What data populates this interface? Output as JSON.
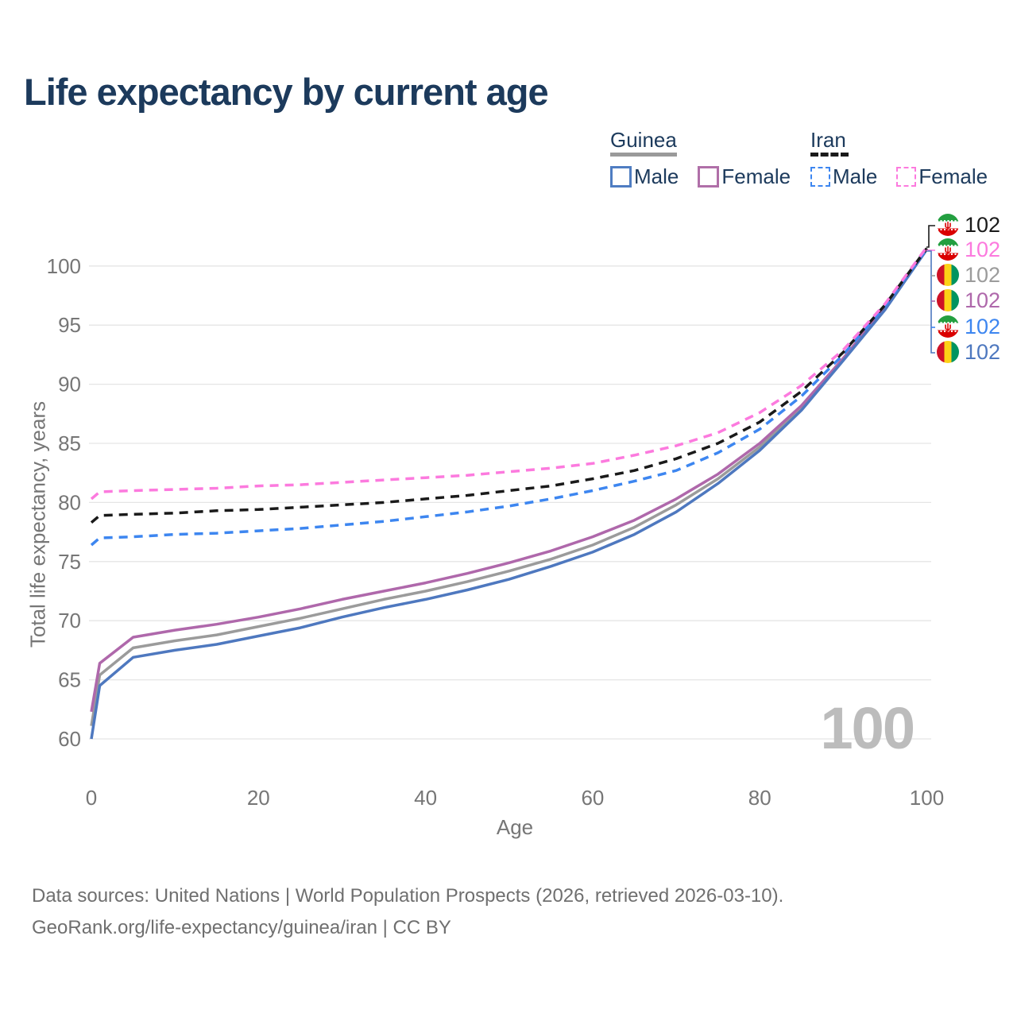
{
  "title": "Life expectancy by current age",
  "legend": {
    "groups": [
      {
        "label": "Guinea",
        "underline": "solid",
        "underline_color": "#9a9a9a",
        "items": [
          {
            "label": "Male",
            "color": "#4f7dc2",
            "dashed": false
          },
          {
            "label": "Female",
            "color": "#b06fa8",
            "dashed": false
          }
        ]
      },
      {
        "label": "Iran",
        "underline": "dashed",
        "underline_color": "#1a1a1a",
        "items": [
          {
            "label": "Male",
            "color": "#3d86f0",
            "dashed": true
          },
          {
            "label": "Female",
            "color": "#fc7ade",
            "dashed": true
          }
        ]
      }
    ]
  },
  "chart_data": {
    "type": "line",
    "title": "Life expectancy by current age",
    "xlabel": "Age",
    "ylabel": "Total life expectancy, years",
    "x_ticks": [
      0,
      20,
      40,
      60,
      80,
      100
    ],
    "y_ticks": [
      60,
      65,
      70,
      75,
      80,
      85,
      90,
      95,
      100
    ],
    "xlim": [
      0,
      100
    ],
    "ylim": [
      60,
      102
    ],
    "grid": "horizontal",
    "legend_position": "top-right",
    "age_counter": "100",
    "x": [
      0,
      1,
      5,
      10,
      15,
      20,
      25,
      30,
      35,
      40,
      45,
      50,
      55,
      60,
      65,
      70,
      75,
      80,
      85,
      90,
      95,
      100
    ],
    "series": [
      {
        "name": "Guinea (both sexes)",
        "country": "Guinea",
        "color": "#9b9b9b",
        "dashed": false,
        "values": [
          61.1,
          65.4,
          67.7,
          68.3,
          68.8,
          69.5,
          70.2,
          71.0,
          71.8,
          72.5,
          73.3,
          74.2,
          75.2,
          76.4,
          77.9,
          79.8,
          82.0,
          84.7,
          88.0,
          92.1,
          96.4,
          101.4
        ]
      },
      {
        "name": "Guinea Female",
        "country": "Guinea",
        "color": "#af68ab",
        "dashed": false,
        "values": [
          62.3,
          66.4,
          68.6,
          69.2,
          69.7,
          70.3,
          71.0,
          71.8,
          72.5,
          73.2,
          74.0,
          74.9,
          75.9,
          77.1,
          78.5,
          80.3,
          82.4,
          85.0,
          88.2,
          92.2,
          96.5,
          101.5
        ]
      },
      {
        "name": "Guinea Male",
        "country": "Guinea",
        "color": "#4e78bf",
        "dashed": false,
        "values": [
          60.0,
          64.5,
          66.9,
          67.5,
          68.0,
          68.7,
          69.4,
          70.3,
          71.1,
          71.8,
          72.6,
          73.5,
          74.6,
          75.8,
          77.3,
          79.2,
          81.6,
          84.4,
          87.8,
          92.0,
          96.3,
          101.4
        ]
      },
      {
        "name": "Iran Male",
        "country": "Iran",
        "color": "#3d86f0",
        "dashed": true,
        "values": [
          76.4,
          77.0,
          77.1,
          77.3,
          77.4,
          77.6,
          77.8,
          78.1,
          78.4,
          78.8,
          79.2,
          79.7,
          80.3,
          81.0,
          81.8,
          82.7,
          84.2,
          86.2,
          89.0,
          92.5,
          96.6,
          101.5
        ]
      },
      {
        "name": "Iran (both sexes)",
        "country": "Iran",
        "color": "#1a1a1a",
        "dashed": true,
        "values": [
          78.3,
          78.9,
          79.0,
          79.1,
          79.3,
          79.4,
          79.6,
          79.8,
          80.0,
          80.3,
          80.6,
          81.0,
          81.4,
          82.0,
          82.7,
          83.7,
          85.0,
          86.8,
          89.4,
          92.7,
          96.7,
          101.5
        ]
      },
      {
        "name": "Iran Female",
        "country": "Iran",
        "color": "#fc7ade",
        "dashed": true,
        "values": [
          80.3,
          80.9,
          81.0,
          81.1,
          81.2,
          81.4,
          81.5,
          81.7,
          81.9,
          82.1,
          82.3,
          82.6,
          82.9,
          83.3,
          84.0,
          84.8,
          85.9,
          87.6,
          89.9,
          92.9,
          96.8,
          101.6
        ]
      }
    ],
    "end_labels": [
      {
        "flag": "iran",
        "icon": "iran-flag-icon",
        "value": "102",
        "color": "#1a1a1a"
      },
      {
        "flag": "iran",
        "icon": "iran-flag-icon",
        "value": "102",
        "color": "#fc7ade"
      },
      {
        "flag": "guinea",
        "icon": "guinea-flag-icon",
        "value": "102",
        "color": "#9b9b9b"
      },
      {
        "flag": "guinea",
        "icon": "guinea-flag-icon",
        "value": "102",
        "color": "#af68ab"
      },
      {
        "flag": "iran",
        "icon": "iran-flag-icon",
        "value": "102",
        "color": "#3d86f0"
      },
      {
        "flag": "guinea",
        "icon": "guinea-flag-icon",
        "value": "102",
        "color": "#4e78bf"
      }
    ],
    "icons": {
      "iran_emblem_glyph": "ψ"
    }
  },
  "footer": {
    "line1": "Data sources: United Nations | World Population Prospects (2026, retrieved 2026-03-10).",
    "line2": "GeoRank.org/life-expectancy/guinea/iran | CC BY"
  }
}
